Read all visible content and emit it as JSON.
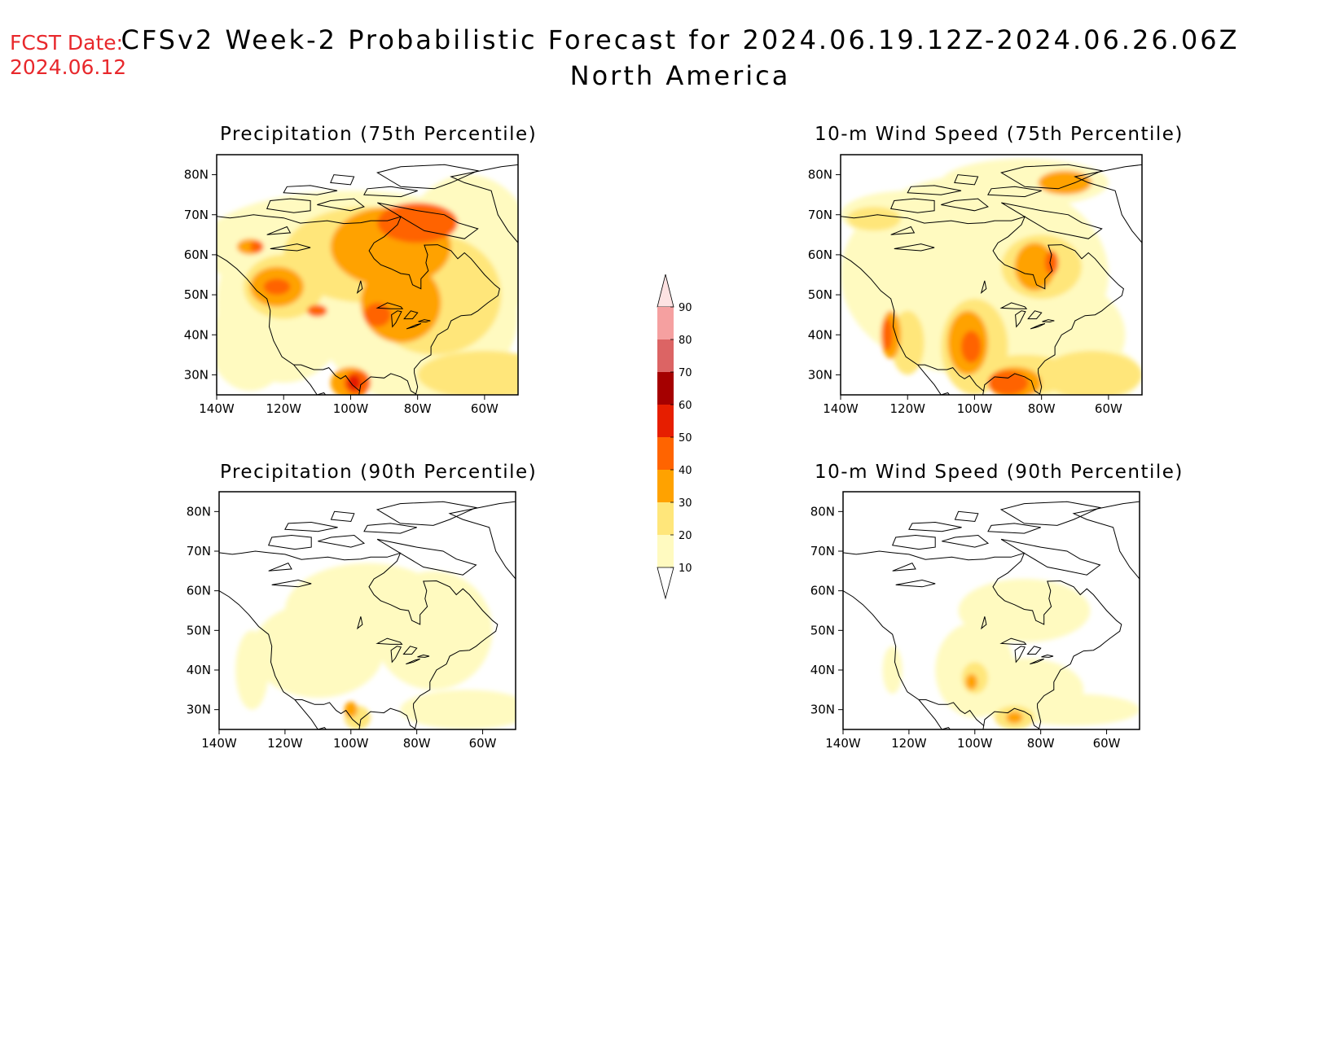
{
  "header": {
    "fcst_label": "FCST Date:",
    "fcst_date": "2024.06.12",
    "title_line1": "CFSv2 Week-2 Probabilistic Forecast for 2024.06.19.12Z-2024.06.26.06Z",
    "title_line2": "North America"
  },
  "axes": {
    "lat_ticks": [
      "80N",
      "70N",
      "60N",
      "50N",
      "40N",
      "30N"
    ],
    "lon_ticks": [
      "140W",
      "120W",
      "100W",
      "80W",
      "60W"
    ]
  },
  "panels": [
    {
      "id": "precip-75",
      "title": "Precipitation (75th Percentile)",
      "intensity": 1.0
    },
    {
      "id": "wind-75",
      "title": "10-m Wind Speed (75th Percentile)",
      "intensity": 1.0
    },
    {
      "id": "precip-90",
      "title": "Precipitation (90th Percentile)",
      "intensity": 0.35
    },
    {
      "id": "wind-90",
      "title": "10-m Wind Speed (90th Percentile)",
      "intensity": 0.35
    }
  ],
  "colorbar": {
    "levels": [
      "10",
      "20",
      "30",
      "40",
      "50",
      "60",
      "70",
      "80",
      "90"
    ],
    "colors": [
      "#fffac0",
      "#ffe67a",
      "#ffa200",
      "#ff6400",
      "#e61e00",
      "#a50000",
      "#dc6464",
      "#f5a0a0",
      "#fde2e2"
    ]
  },
  "colors": {
    "fcst_text": "#e8282c",
    "land_outline": "#000000"
  }
}
